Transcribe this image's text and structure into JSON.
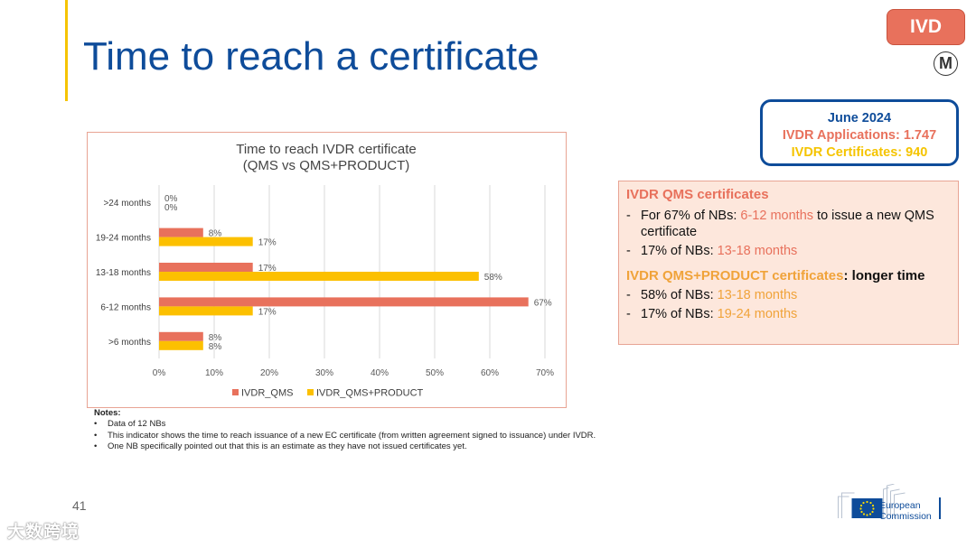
{
  "slide": {
    "title": "Time to reach a certificate",
    "badge": "IVD",
    "circle_symbol": "M",
    "page_number": "41",
    "watermark": "大数跨境"
  },
  "info_box": {
    "date": "June 2024",
    "applications": "IVDR Applications: 1.747",
    "certificates": "IVDR Certificates: 940"
  },
  "summary": {
    "qms_title": "IVDR QMS certificates",
    "qms_b1_pre": "For 67% of NBs: ",
    "qms_b1_hl": "6-12 months",
    "qms_b1_post": " to issue a new QMS certificate",
    "qms_b2_pre": "17% of NBs: ",
    "qms_b2_hl": "13-18 months",
    "prod_title_hl": "IVDR QMS+PRODUCT certificates",
    "prod_title_post": ": longer time",
    "prod_b1_pre": "58% of NBs: ",
    "prod_b1_hl": "13-18 months",
    "prod_b2_pre": "17% of NBs: ",
    "prod_b2_hl": "19-24 months"
  },
  "notes": {
    "title": "Notes:",
    "items": [
      "Data of 12 NBs",
      "This indicator shows the time to reach issuance of a new EC certificate (from written agreement signed to issuance) under IVDR.",
      "One NB specifically pointed out that this is an estimate as they have not issued certificates yet."
    ]
  },
  "footer": {
    "org_line1": "European",
    "org_line2": "Commission"
  },
  "colors": {
    "qms": "#e8715c",
    "product": "#fcc000",
    "title_blue": "#0e4c9a"
  },
  "chart_data": {
    "type": "bar",
    "orientation": "horizontal",
    "title": "Time to reach IVDR certificate",
    "subtitle": "(QMS vs QMS+PRODUCT)",
    "categories": [
      ">24 months",
      "19-24 months",
      "13-18 months",
      "6-12 months",
      ">6 months"
    ],
    "series": [
      {
        "name": "IVDR_QMS",
        "values": [
          0,
          8,
          17,
          67,
          8
        ],
        "labels": [
          "0%",
          "8%",
          "17%",
          "67%",
          "8%"
        ]
      },
      {
        "name": "IVDR_QMS+PRODUCT",
        "values": [
          0,
          17,
          58,
          17,
          8
        ],
        "labels": [
          "0%",
          "17%",
          "58%",
          "17%",
          "8%"
        ]
      }
    ],
    "x_ticks": [
      "0%",
      "10%",
      "20%",
      "30%",
      "40%",
      "50%",
      "60%",
      "70%"
    ],
    "xlim": [
      0,
      70
    ],
    "grid": true,
    "legend_position": "bottom"
  }
}
